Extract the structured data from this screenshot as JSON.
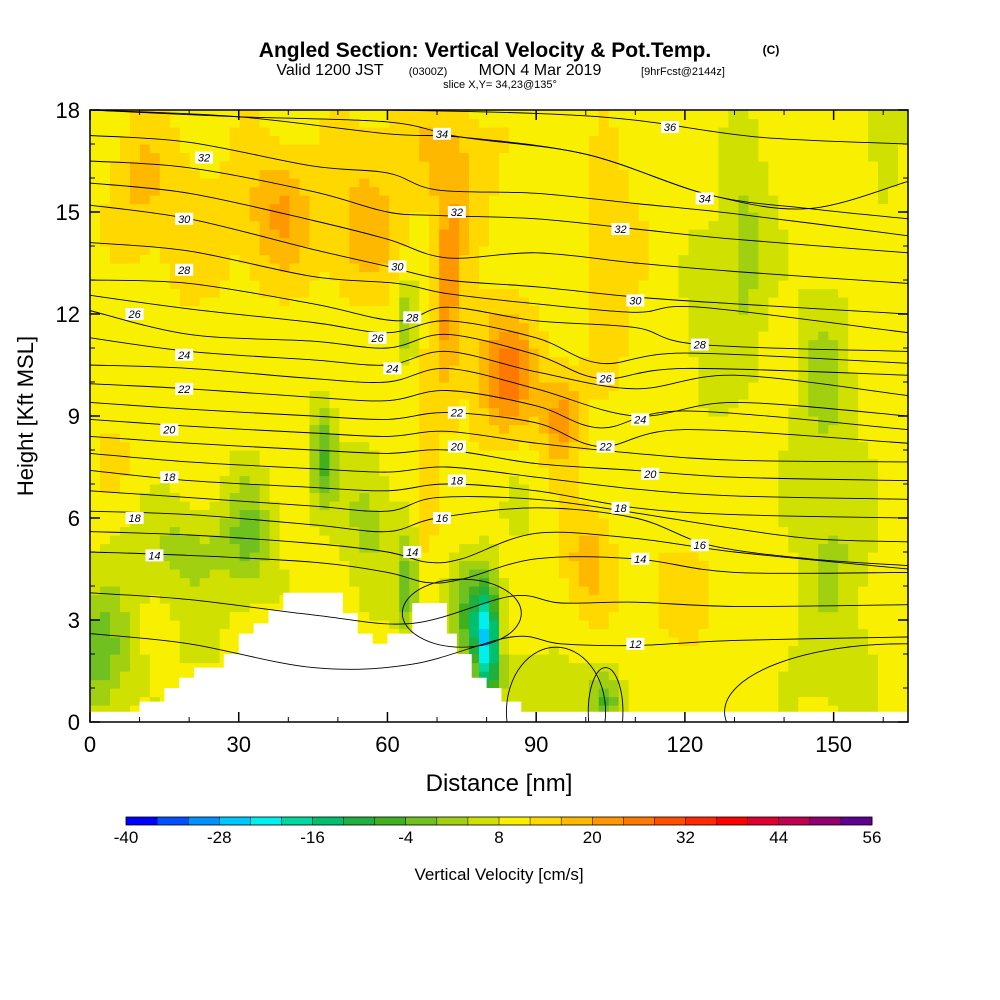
{
  "title": {
    "main": "Angled Section: Vertical Velocity & Pot.Temp.",
    "main_unit": "(C)",
    "valid_prefix": "Valid 1200 JST",
    "valid_utc": "(0300Z)",
    "valid_date": "MON 4 Mar 2019",
    "forecast": "[9hrFcst@2144z]",
    "slice": "slice X,Y= 34,23@135°"
  },
  "chart_data": {
    "type": "heatmap",
    "xlabel": "Distance [nm]",
    "ylabel": "Height [Kft MSL]",
    "xlim": [
      0,
      165
    ],
    "ylim": [
      0,
      18
    ],
    "xticks": [
      0,
      30,
      60,
      90,
      120,
      150
    ],
    "yticks": [
      0,
      3,
      6,
      9,
      12,
      15,
      18
    ],
    "colorbar": {
      "label": "Vertical Velocity [cm/s]",
      "min": -40,
      "max": 56,
      "step": 4,
      "tick_values": [
        -40,
        -28,
        -16,
        -4,
        8,
        20,
        32,
        44,
        56
      ],
      "colors": [
        "#0000ff",
        "#0050ff",
        "#0090ff",
        "#00c8ff",
        "#00f0f0",
        "#00d8a0",
        "#00c070",
        "#20b040",
        "#40b020",
        "#70c020",
        "#a0d010",
        "#d0e000",
        "#f8f000",
        "#ffd800",
        "#ffb800",
        "#ff9800",
        "#ff7800",
        "#ff5000",
        "#ff2800",
        "#ff0000",
        "#e00030",
        "#c00050",
        "#900070",
        "#600090"
      ]
    },
    "background_velocity": 10,
    "velocity_features": [
      {
        "x": 10,
        "y": 16.0,
        "sx": 6,
        "sy": 1.8,
        "v": 16
      },
      {
        "x": 20,
        "y": 14.5,
        "sx": 10,
        "sy": 2.5,
        "v": 14
      },
      {
        "x": 38,
        "y": 15.0,
        "sx": 7,
        "sy": 2.0,
        "v": 20
      },
      {
        "x": 40,
        "y": 11.0,
        "sx": 14,
        "sy": 3.0,
        "v": 10
      },
      {
        "x": 55,
        "y": 14.5,
        "sx": 8,
        "sy": 2.0,
        "v": 18
      },
      {
        "x": 65,
        "y": 17.0,
        "sx": 12,
        "sy": 1.5,
        "v": 14
      },
      {
        "x": 72,
        "y": 12.5,
        "sx": 3,
        "sy": 3.0,
        "v": 22
      },
      {
        "x": 68,
        "y": 7.0,
        "sx": 2,
        "sy": 1.8,
        "v": 18
      },
      {
        "x": 75,
        "y": 16.0,
        "sx": 6,
        "sy": 2.0,
        "v": 16
      },
      {
        "x": 84,
        "y": 10.3,
        "sx": 6,
        "sy": 1.8,
        "v": 26
      },
      {
        "x": 95,
        "y": 9.0,
        "sx": 4,
        "sy": 1.4,
        "v": 22
      },
      {
        "x": 105,
        "y": 13.5,
        "sx": 5,
        "sy": 3.0,
        "v": 16
      },
      {
        "x": 100,
        "y": 4.8,
        "sx": 5,
        "sy": 1.5,
        "v": 18
      },
      {
        "x": 118,
        "y": 3.8,
        "sx": 8,
        "sy": 1.5,
        "v": 14
      },
      {
        "x": 160,
        "y": 17.5,
        "sx": 3,
        "sy": 2.0,
        "v": 4
      },
      {
        "x": 132,
        "y": 14.0,
        "sx": 5,
        "sy": 3.0,
        "v": 2
      },
      {
        "x": 148,
        "y": 10.0,
        "sx": 6,
        "sy": 3.0,
        "v": 3
      },
      {
        "x": 124,
        "y": 11.0,
        "sx": 6,
        "sy": 2.5,
        "v": 6
      },
      {
        "x": 150,
        "y": 5.0,
        "sx": 8,
        "sy": 2.5,
        "v": 4
      },
      {
        "x": 150,
        "y": 1.5,
        "sx": 10,
        "sy": 1.5,
        "v": 6
      },
      {
        "x": 2,
        "y": 2.0,
        "sx": 6,
        "sy": 2.0,
        "v": -2
      },
      {
        "x": 18,
        "y": 5.0,
        "sx": 12,
        "sy": 1.5,
        "v": 3
      },
      {
        "x": 32,
        "y": 5.5,
        "sx": 5,
        "sy": 1.8,
        "v": 0
      },
      {
        "x": 47,
        "y": 7.8,
        "sx": 2.5,
        "sy": 1.6,
        "v": -4
      },
      {
        "x": 56,
        "y": 6.0,
        "sx": 5,
        "sy": 2.0,
        "v": 2
      },
      {
        "x": 64,
        "y": 11.8,
        "sx": 2,
        "sy": 1.2,
        "v": 0
      },
      {
        "x": 64,
        "y": 4.0,
        "sx": 2,
        "sy": 1.5,
        "v": -4
      },
      {
        "x": 80,
        "y": 2.2,
        "sx": 2.5,
        "sy": 1.6,
        "v": -18
      },
      {
        "x": 77,
        "y": 3.2,
        "sx": 5,
        "sy": 1.5,
        "v": -4
      },
      {
        "x": 92,
        "y": 1.0,
        "sx": 10,
        "sy": 1.0,
        "v": 4
      },
      {
        "x": 104,
        "y": 0.6,
        "sx": 3,
        "sy": 0.8,
        "v": -2
      },
      {
        "x": 108,
        "y": 2.2,
        "sx": 8,
        "sy": 1.5,
        "v": 10
      },
      {
        "x": 88,
        "y": 6.0,
        "sx": 6,
        "sy": 2.0,
        "v": 8
      },
      {
        "x": 22,
        "y": 2.0,
        "sx": 12,
        "sy": 1.5,
        "v": 8
      },
      {
        "x": 5,
        "y": 8.0,
        "sx": 6,
        "sy": 2.0,
        "v": 12
      }
    ],
    "terrain": [
      [
        0,
        0.3
      ],
      [
        10,
        0.3
      ],
      [
        10,
        0.6
      ],
      [
        15,
        0.6
      ],
      [
        15,
        1.0
      ],
      [
        18,
        1.0
      ],
      [
        18,
        1.3
      ],
      [
        21,
        1.3
      ],
      [
        21,
        1.6
      ],
      [
        27,
        1.6
      ],
      [
        27,
        2.0
      ],
      [
        30,
        2.0
      ],
      [
        30,
        2.6
      ],
      [
        33,
        2.6
      ],
      [
        33,
        2.9
      ],
      [
        36,
        2.9
      ],
      [
        36,
        3.3
      ],
      [
        39,
        3.3
      ],
      [
        39,
        3.8
      ],
      [
        51,
        3.8
      ],
      [
        51,
        3.2
      ],
      [
        54,
        3.2
      ],
      [
        54,
        2.6
      ],
      [
        57,
        2.6
      ],
      [
        57,
        2.3
      ],
      [
        60,
        2.3
      ],
      [
        60,
        2.6
      ],
      [
        63,
        2.6
      ],
      [
        63,
        2.6
      ],
      [
        65,
        2.6
      ],
      [
        65,
        3.5
      ],
      [
        72,
        3.5
      ],
      [
        72,
        2.6
      ],
      [
        74,
        2.6
      ],
      [
        74,
        2.0
      ],
      [
        77,
        2.0
      ],
      [
        77,
        1.3
      ],
      [
        80,
        1.3
      ],
      [
        80,
        1.0
      ],
      [
        83,
        1.0
      ],
      [
        83,
        0.6
      ],
      [
        87,
        0.6
      ],
      [
        87,
        0.3
      ],
      [
        165,
        0.3
      ]
    ],
    "isentropes": [
      {
        "theta": 12,
        "pts": [
          [
            0,
            2.6
          ],
          [
            20,
            2.3
          ],
          [
            45,
            1.6
          ],
          [
            65,
            1.7
          ],
          [
            85,
            2.5
          ],
          [
            95,
            2.3
          ],
          [
            110,
            2.25
          ],
          [
            130,
            2.4
          ],
          [
            165,
            2.5
          ]
        ]
      },
      {
        "theta": 14,
        "pts": [
          [
            0,
            5.0
          ],
          [
            20,
            4.9
          ],
          [
            45,
            4.7
          ],
          [
            60,
            4.4
          ],
          [
            68,
            4.1
          ],
          [
            75,
            4.2
          ],
          [
            90,
            4.8
          ],
          [
            110,
            4.8
          ],
          [
            130,
            4.4
          ],
          [
            165,
            4.4
          ]
        ]
      },
      {
        "theta": 16,
        "pts": [
          [
            0,
            6.2
          ],
          [
            20,
            6.1
          ],
          [
            45,
            5.8
          ],
          [
            60,
            5.6
          ],
          [
            70,
            6.0
          ],
          [
            90,
            6.3
          ],
          [
            110,
            6.0
          ],
          [
            125,
            5.2
          ],
          [
            145,
            4.8
          ],
          [
            165,
            4.6
          ]
        ]
      },
      {
        "theta": 18,
        "pts": [
          [
            0,
            7.4
          ],
          [
            20,
            7.1
          ],
          [
            45,
            6.9
          ],
          [
            60,
            6.8
          ],
          [
            72,
            7.0
          ],
          [
            90,
            6.8
          ],
          [
            110,
            6.3
          ],
          [
            130,
            6.1
          ],
          [
            165,
            6.0
          ]
        ]
      },
      {
        "theta": 20,
        "pts": [
          [
            0,
            8.4
          ],
          [
            20,
            8.2
          ],
          [
            45,
            8.0
          ],
          [
            60,
            7.9
          ],
          [
            72,
            8.0
          ],
          [
            90,
            7.6
          ],
          [
            110,
            7.4
          ],
          [
            130,
            7.2
          ],
          [
            165,
            7.1
          ]
        ]
      },
      {
        "theta": 22,
        "pts": [
          [
            0,
            9.4
          ],
          [
            20,
            9.2
          ],
          [
            45,
            9.0
          ],
          [
            60,
            8.9
          ],
          [
            72,
            9.1
          ],
          [
            90,
            8.8
          ],
          [
            103,
            8.1
          ],
          [
            120,
            8.6
          ],
          [
            165,
            8.2
          ]
        ]
      },
      {
        "theta": 24,
        "pts": [
          [
            0,
            10.5
          ],
          [
            20,
            10.4
          ],
          [
            45,
            10.1
          ],
          [
            60,
            10.0
          ],
          [
            72,
            10.4
          ],
          [
            90,
            9.8
          ],
          [
            110,
            9.0
          ],
          [
            130,
            9.4
          ],
          [
            165,
            9.0
          ]
        ]
      },
      {
        "theta": 26,
        "pts": [
          [
            0,
            12.1
          ],
          [
            20,
            11.4
          ],
          [
            45,
            11.2
          ],
          [
            60,
            11.0
          ],
          [
            72,
            11.4
          ],
          [
            90,
            10.8
          ],
          [
            103,
            10.1
          ],
          [
            120,
            10.4
          ],
          [
            165,
            10.2
          ]
        ]
      },
      {
        "theta": 28,
        "pts": [
          [
            0,
            13.0
          ],
          [
            20,
            12.9
          ],
          [
            45,
            12.3
          ],
          [
            62,
            11.8
          ],
          [
            72,
            12.2
          ],
          [
            90,
            11.8
          ],
          [
            110,
            11.6
          ],
          [
            123,
            11.1
          ],
          [
            165,
            10.9
          ]
        ]
      },
      {
        "theta": 30,
        "pts": [
          [
            0,
            15.2
          ],
          [
            20,
            14.8
          ],
          [
            45,
            13.9
          ],
          [
            60,
            13.4
          ],
          [
            72,
            13.0
          ],
          [
            90,
            12.8
          ],
          [
            110,
            12.5
          ],
          [
            130,
            12.3
          ],
          [
            165,
            12.0
          ]
        ]
      },
      {
        "theta": 32,
        "pts": [
          [
            0,
            16.5
          ],
          [
            20,
            16.3
          ],
          [
            45,
            15.6
          ],
          [
            60,
            15.0
          ],
          [
            70,
            14.9
          ],
          [
            90,
            14.8
          ],
          [
            110,
            14.5
          ],
          [
            130,
            14.2
          ],
          [
            165,
            13.8
          ]
        ]
      },
      {
        "theta": 34,
        "pts": [
          [
            0,
            18.0
          ],
          [
            30,
            17.8
          ],
          [
            60,
            17.3
          ],
          [
            75,
            17.2
          ],
          [
            100,
            16.7
          ],
          [
            125,
            15.5
          ],
          [
            145,
            15.1
          ],
          [
            165,
            14.8
          ]
        ]
      },
      {
        "theta": 36,
        "pts": [
          [
            60,
            18.0
          ],
          [
            90,
            17.9
          ],
          [
            110,
            17.7
          ],
          [
            135,
            17.2
          ],
          [
            165,
            17.0
          ]
        ]
      }
    ],
    "contour_labels": [
      {
        "text": "34",
        "x": 71,
        "y": 17.3
      },
      {
        "text": "36",
        "x": 117,
        "y": 17.5
      },
      {
        "text": "32",
        "x": 23,
        "y": 16.6
      },
      {
        "text": "34",
        "x": 124,
        "y": 15.4
      },
      {
        "text": "32",
        "x": 74,
        "y": 15.0
      },
      {
        "text": "30",
        "x": 19,
        "y": 14.8
      },
      {
        "text": "32",
        "x": 107,
        "y": 14.5
      },
      {
        "text": "30",
        "x": 62,
        "y": 13.4
      },
      {
        "text": "28",
        "x": 19,
        "y": 13.3
      },
      {
        "text": "30",
        "x": 110,
        "y": 12.4
      },
      {
        "text": "26",
        "x": 9,
        "y": 12.0
      },
      {
        "text": "28",
        "x": 65,
        "y": 11.9
      },
      {
        "text": "26",
        "x": 58,
        "y": 11.3
      },
      {
        "text": "28",
        "x": 123,
        "y": 11.1
      },
      {
        "text": "24",
        "x": 19,
        "y": 10.8
      },
      {
        "text": "24",
        "x": 61,
        "y": 10.4
      },
      {
        "text": "26",
        "x": 104,
        "y": 10.1
      },
      {
        "text": "22",
        "x": 19,
        "y": 9.8
      },
      {
        "text": "22",
        "x": 74,
        "y": 9.1
      },
      {
        "text": "24",
        "x": 111,
        "y": 8.9
      },
      {
        "text": "20",
        "x": 16,
        "y": 8.6
      },
      {
        "text": "20",
        "x": 74,
        "y": 8.1
      },
      {
        "text": "22",
        "x": 104,
        "y": 8.1
      },
      {
        "text": "18",
        "x": 16,
        "y": 7.2
      },
      {
        "text": "20",
        "x": 113,
        "y": 7.3
      },
      {
        "text": "18",
        "x": 74,
        "y": 7.1
      },
      {
        "text": "16",
        "x": 71,
        "y": 6.0
      },
      {
        "text": "18",
        "x": 107,
        "y": 6.3
      },
      {
        "text": "18",
        "x": 9,
        "y": 6.0
      },
      {
        "text": "16",
        "x": 123,
        "y": 5.2
      },
      {
        "text": "14",
        "x": 13,
        "y": 4.9
      },
      {
        "text": "14",
        "x": 65,
        "y": 5.0
      },
      {
        "text": "14",
        "x": 111,
        "y": 4.8
      },
      {
        "text": "12",
        "x": 110,
        "y": 2.3
      }
    ],
    "closed_contours": [
      {
        "cx": 94,
        "cy": 0.3,
        "rx": 10,
        "ry": 1.9
      },
      {
        "cx": 104,
        "cy": 0.3,
        "rx": 3.5,
        "ry": 1.3
      },
      {
        "cx": 164,
        "cy": 0.3,
        "rx": 36,
        "ry": 2.0
      },
      {
        "cx": 75,
        "cy": 3.2,
        "rx": 12,
        "ry": 1.0
      }
    ]
  }
}
